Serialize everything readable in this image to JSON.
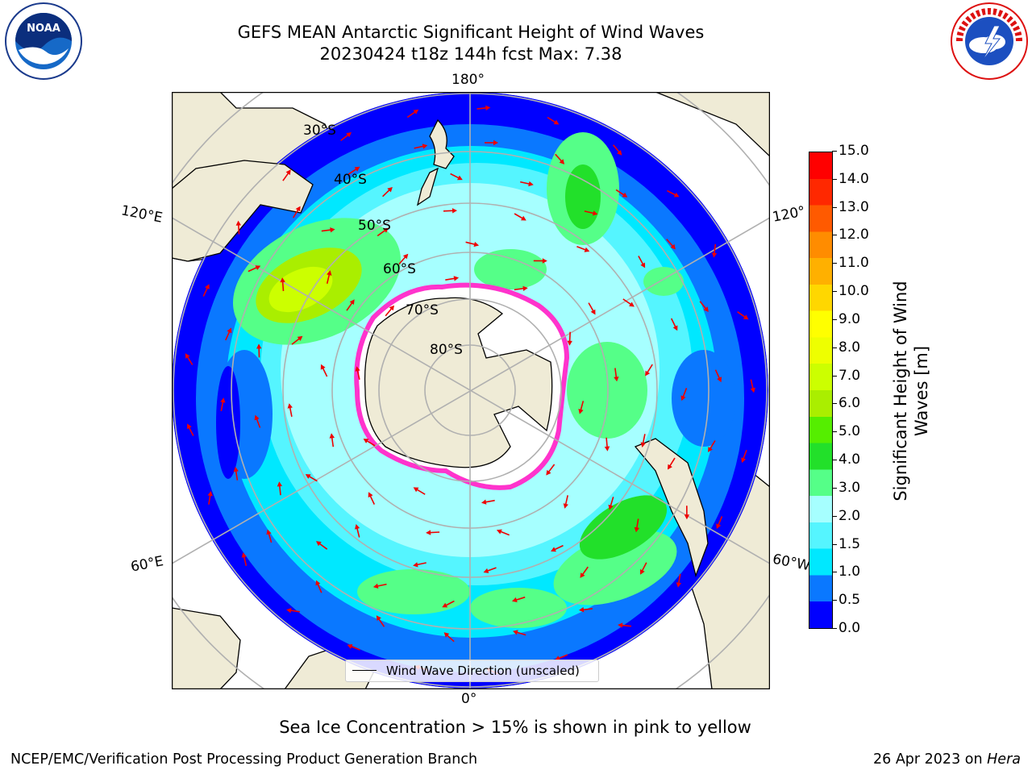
{
  "title": {
    "line1": "GEFS MEAN Antarctic Significant Height of Wind Waves",
    "line2": "20230424 t18z 144h fcst   Max: 7.38"
  },
  "map_labels": {
    "lon_top": "180°",
    "lon_bottom": "0°",
    "lon_left_upper": "120°E",
    "lon_left_lower": "60°E",
    "lon_right_upper": "120°",
    "lon_right_lower": "60°W",
    "lat_30": "30°S",
    "lat_40": "40°S",
    "lat_50": "50°S",
    "lat_60": "60°S",
    "lat_70": "70°S",
    "lat_80": "80°S"
  },
  "legend": {
    "label": "Wind Wave Direction (unscaled)"
  },
  "colorbar": {
    "label_line1": "Significant Height of Wind",
    "label_line2": "Waves [m]",
    "ticks": [
      "0.0",
      "0.5",
      "1.0",
      "1.5",
      "2.0",
      "3.0",
      "4.0",
      "5.0",
      "6.0",
      "7.0",
      "8.0",
      "9.0",
      "10.0",
      "11.0",
      "12.0",
      "13.0",
      "14.0",
      "15.0"
    ],
    "colors": [
      "#0000ff",
      "#0a78ff",
      "#00e8ff",
      "#55f5ff",
      "#a6ffff",
      "#55ff88",
      "#22e02a",
      "#55ee00",
      "#aaee00",
      "#ccff00",
      "#eeff00",
      "#ffff00",
      "#ffd700",
      "#ffb000",
      "#ff8c00",
      "#ff5a00",
      "#ff2800",
      "#ff0000"
    ]
  },
  "colors": {
    "land": "#efebd6",
    "ice": "#ffffff",
    "ice_edge": "#ff33cc",
    "arrow": "#ee0000",
    "grid": "#b0b0b0"
  },
  "sea_ice_note": "Sea Ice Concentration > 15% is shown in pink to yellow",
  "footer": {
    "left": "NCEP/EMC/Verification Post Processing Product Generation Branch",
    "right_prefix": "26 Apr 2023 on ",
    "right_italic": "Hera"
  },
  "logos": {
    "noaa": "NOAA",
    "nws": "NATIONAL WEATHER SERVICE"
  }
}
